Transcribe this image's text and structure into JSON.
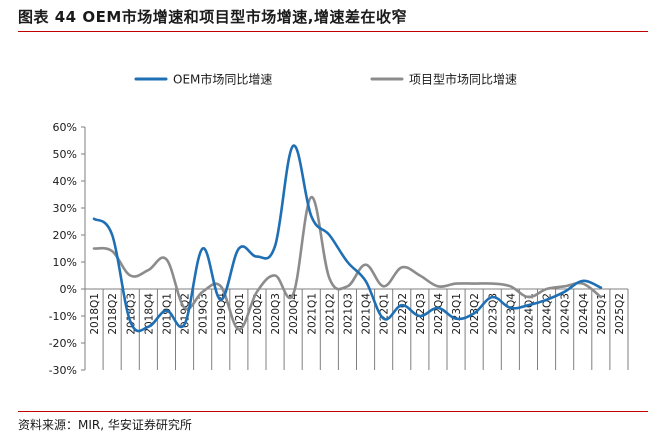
{
  "figure": {
    "title": "图表 44 OEM市场增速和项目型市场增速,增速差在收窄",
    "source": "资料来源：MIR, 华安证券研究所"
  },
  "colors": {
    "oem": "#1f6fb4",
    "project": "#8c8c8c",
    "title_rule": "#c00000",
    "axis": "#7f7f7f"
  },
  "chart_data": {
    "type": "line",
    "title": "",
    "xlabel": "",
    "ylabel": "",
    "ylim": [
      -30,
      60
    ],
    "yticks": [
      -30,
      -20,
      -10,
      0,
      10,
      20,
      30,
      40,
      50,
      60
    ],
    "ytick_labels": [
      "-30%",
      "-20%",
      "-10%",
      "0%",
      "10%",
      "20%",
      "30%",
      "40%",
      "50%",
      "60%"
    ],
    "legend_position": "top",
    "categories": [
      "2018Q1",
      "2018Q2",
      "2018Q3",
      "2018Q4",
      "2019Q1",
      "2019Q2",
      "2019Q3",
      "2019Q4",
      "2020Q1",
      "2020Q2",
      "2020Q3",
      "2020Q4",
      "2021Q1",
      "2021Q2",
      "2021Q3",
      "2021Q4",
      "2022Q1",
      "2022Q2",
      "2022Q3",
      "2022Q4",
      "2023Q1",
      "2023Q2",
      "2023Q3",
      "2023Q4",
      "2024Q1",
      "2024Q2",
      "2024Q3",
      "2024Q4",
      "2025Q1",
      "2025Q2"
    ],
    "series": [
      {
        "name": "OEM市场同比增速",
        "color": "#1f6fb4",
        "values": [
          26,
          20,
          -12,
          -14,
          -8,
          -13,
          15,
          -4,
          15,
          12,
          16,
          53,
          27,
          20,
          10,
          3,
          -11,
          -6,
          -10,
          -7,
          -11,
          -9,
          -3,
          -7,
          -6,
          -4,
          -1,
          3,
          0.5,
          null
        ]
      },
      {
        "name": "项目型市场同比增速",
        "color": "#8c8c8c",
        "values": [
          15,
          14,
          5,
          7,
          11,
          -7,
          -1,
          1,
          -15,
          -1,
          5,
          -2,
          34,
          4,
          1,
          9,
          1,
          8,
          5,
          1,
          2,
          2,
          2,
          1,
          -3,
          0,
          1,
          2,
          -3,
          null
        ]
      }
    ]
  }
}
